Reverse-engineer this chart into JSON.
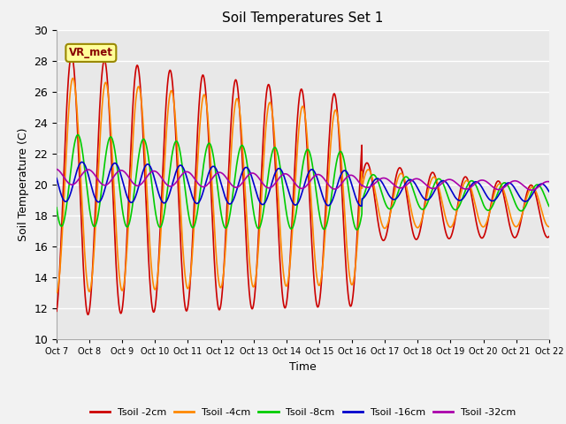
{
  "title": "Soil Temperatures Set 1",
  "xlabel": "Time",
  "ylabel": "Soil Temperature (C)",
  "ylim": [
    10,
    30
  ],
  "xlim": [
    0,
    15
  ],
  "fig_bg": "#f2f2f2",
  "ax_bg": "#e8e8e8",
  "grid_color": "#ffffff",
  "colors": {
    "Tsoil -2cm": "#cc0000",
    "Tsoil -4cm": "#ff8800",
    "Tsoil -8cm": "#00cc00",
    "Tsoil -16cm": "#0000cc",
    "Tsoil -32cm": "#aa00aa"
  },
  "vrmet_label": "VR_met",
  "vrmet_text_color": "#880000",
  "vrmet_bg": "#ffff99",
  "vrmet_border": "#998800",
  "tick_labels": [
    "Oct 7",
    "Oct 8",
    "Oct 9",
    "Oct 10",
    "Oct 11",
    "Oct 12",
    "Oct 13",
    "Oct 14",
    "Oct 15",
    "Oct 16",
    "Oct 17",
    "Oct 18",
    "Oct 19",
    "Oct 20",
    "Oct 21",
    "Oct 22"
  ],
  "yticks": [
    10,
    12,
    14,
    16,
    18,
    20,
    22,
    24,
    26,
    28,
    30
  ],
  "legend_labels": [
    "Tsoil -2cm",
    "Tsoil -4cm",
    "Tsoil -8cm",
    "Tsoil -16cm",
    "Tsoil -32cm"
  ]
}
